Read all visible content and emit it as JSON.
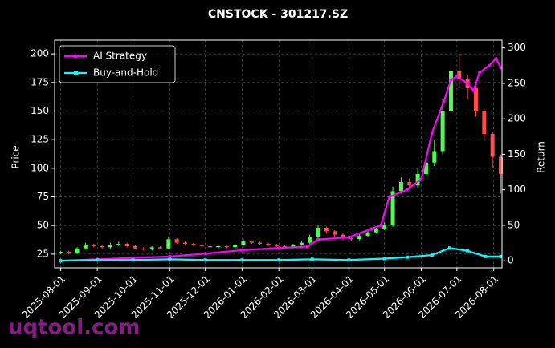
{
  "chart_data": {
    "type": "candlestick",
    "title": "CNSTOCK - 301217.SZ",
    "y_label": "Price",
    "y2_label": "Return",
    "watermark": "uqtool.com",
    "xlim": [
      "2025-07-27",
      "2026-08-08"
    ],
    "xticks": [
      "2025-08-01",
      "2025-09-01",
      "2025-10-01",
      "2025-11-01",
      "2025-12-01",
      "2026-01-01",
      "2026-02-01",
      "2026-03-01",
      "2026-04-01",
      "2026-05-01",
      "2026-06-01",
      "2026-07-01",
      "2026-08-01"
    ],
    "ylim": [
      13,
      212
    ],
    "yticks": [
      25,
      50,
      75,
      100,
      125,
      150,
      175,
      200
    ],
    "y2lim": [
      -10,
      311
    ],
    "y2ticks": [
      0,
      50,
      100,
      150,
      200,
      250,
      300
    ],
    "grid": true,
    "legend": "upper-left",
    "up_color": "#4dff4d",
    "down_color": "#ff4d4d",
    "candles": {
      "x": [
        "2025-08-01",
        "2025-08-08",
        "2025-08-15",
        "2025-08-22",
        "2025-08-29",
        "2025-09-05",
        "2025-09-12",
        "2025-09-19",
        "2025-09-26",
        "2025-10-03",
        "2025-10-10",
        "2025-10-17",
        "2025-10-24",
        "2025-10-31",
        "2025-11-07",
        "2025-11-14",
        "2025-11-21",
        "2025-11-28",
        "2025-12-05",
        "2025-12-12",
        "2025-12-19",
        "2025-12-26",
        "2026-01-02",
        "2026-01-09",
        "2026-01-16",
        "2026-01-23",
        "2026-01-30",
        "2026-02-06",
        "2026-02-13",
        "2026-02-20",
        "2026-02-27",
        "2026-03-06",
        "2026-03-13",
        "2026-03-20",
        "2026-03-27",
        "2026-04-03",
        "2026-04-10",
        "2026-04-17",
        "2026-04-24",
        "2026-05-01",
        "2026-05-08",
        "2026-05-15",
        "2026-05-22",
        "2026-05-29",
        "2026-06-05",
        "2026-06-12",
        "2026-06-19",
        "2026-06-26",
        "2026-07-03",
        "2026-07-10",
        "2026-07-17",
        "2026-07-24",
        "2026-07-31",
        "2026-08-07"
      ],
      "open": [
        26,
        27,
        26,
        30,
        33,
        32,
        31,
        33,
        34,
        32,
        30,
        29,
        31,
        30,
        38,
        35,
        34,
        33,
        32,
        31,
        32,
        31,
        33,
        36,
        35,
        34,
        33,
        32,
        31,
        33,
        35,
        40,
        48,
        45,
        42,
        39,
        38,
        41,
        44,
        47,
        50,
        80,
        88,
        85,
        95,
        105,
        115,
        150,
        185,
        178,
        170,
        150,
        130,
        110
      ],
      "high": [
        28,
        28,
        31,
        35,
        34,
        33,
        35,
        36,
        35,
        33,
        31,
        32,
        32,
        40,
        39,
        36,
        35,
        34,
        33,
        33,
        33,
        34,
        38,
        37,
        36,
        35,
        34,
        33,
        34,
        37,
        42,
        51,
        49,
        46,
        43,
        41,
        43,
        46,
        49,
        53,
        84,
        92,
        91,
        100,
        112,
        125,
        160,
        202,
        200,
        182,
        172,
        152,
        132,
        112
      ],
      "low": [
        25,
        25,
        25,
        29,
        31,
        30,
        30,
        32,
        31,
        29,
        28,
        28,
        29,
        29,
        34,
        33,
        32,
        31,
        30,
        30,
        30,
        30,
        32,
        34,
        33,
        32,
        31,
        30,
        30,
        32,
        34,
        39,
        43,
        40,
        37,
        36,
        37,
        40,
        43,
        46,
        49,
        78,
        82,
        83,
        93,
        102,
        112,
        145,
        170,
        160,
        145,
        125,
        100,
        78
      ],
      "close": [
        27,
        26,
        30,
        33,
        32,
        31,
        33,
        34,
        32,
        30,
        29,
        31,
        30,
        38,
        35,
        34,
        33,
        32,
        31,
        32,
        31,
        33,
        36,
        35,
        34,
        33,
        32,
        31,
        33,
        35,
        40,
        48,
        45,
        42,
        39,
        38,
        41,
        44,
        47,
        50,
        80,
        88,
        85,
        95,
        105,
        115,
        150,
        185,
        178,
        170,
        150,
        130,
        110,
        95
      ]
    },
    "series": [
      {
        "name": "AI Strategy",
        "color": "#ff00ff",
        "axis": "y2",
        "x": [
          "2025-08-01",
          "2025-09-01",
          "2025-10-01",
          "2025-11-01",
          "2025-12-01",
          "2026-01-01",
          "2026-02-01",
          "2026-02-25",
          "2026-03-06",
          "2026-04-01",
          "2026-04-20",
          "2026-04-28",
          "2026-05-05",
          "2026-05-20",
          "2026-06-01",
          "2026-06-10",
          "2026-06-20",
          "2026-06-26",
          "2026-07-01",
          "2026-07-10",
          "2026-07-15",
          "2026-07-20",
          "2026-07-28",
          "2026-08-03",
          "2026-08-07"
        ],
        "values": [
          0,
          2,
          4,
          6,
          10,
          15,
          18,
          20,
          30,
          33,
          45,
          50,
          90,
          100,
          115,
          180,
          225,
          255,
          260,
          250,
          240,
          265,
          275,
          285,
          272
        ]
      },
      {
        "name": "Buy-and-Hold",
        "color": "#00ffff",
        "axis": "y2",
        "x": [
          "2025-08-01",
          "2025-09-01",
          "2025-10-01",
          "2025-11-01",
          "2025-12-01",
          "2026-01-01",
          "2026-02-01",
          "2026-03-01",
          "2026-04-01",
          "2026-05-01",
          "2026-05-20",
          "2026-06-10",
          "2026-06-25",
          "2026-07-10",
          "2026-07-25",
          "2026-08-07"
        ],
        "values": [
          0,
          1,
          1,
          2,
          1,
          1,
          1,
          2,
          1,
          3,
          5,
          8,
          18,
          14,
          6,
          6
        ]
      }
    ]
  }
}
